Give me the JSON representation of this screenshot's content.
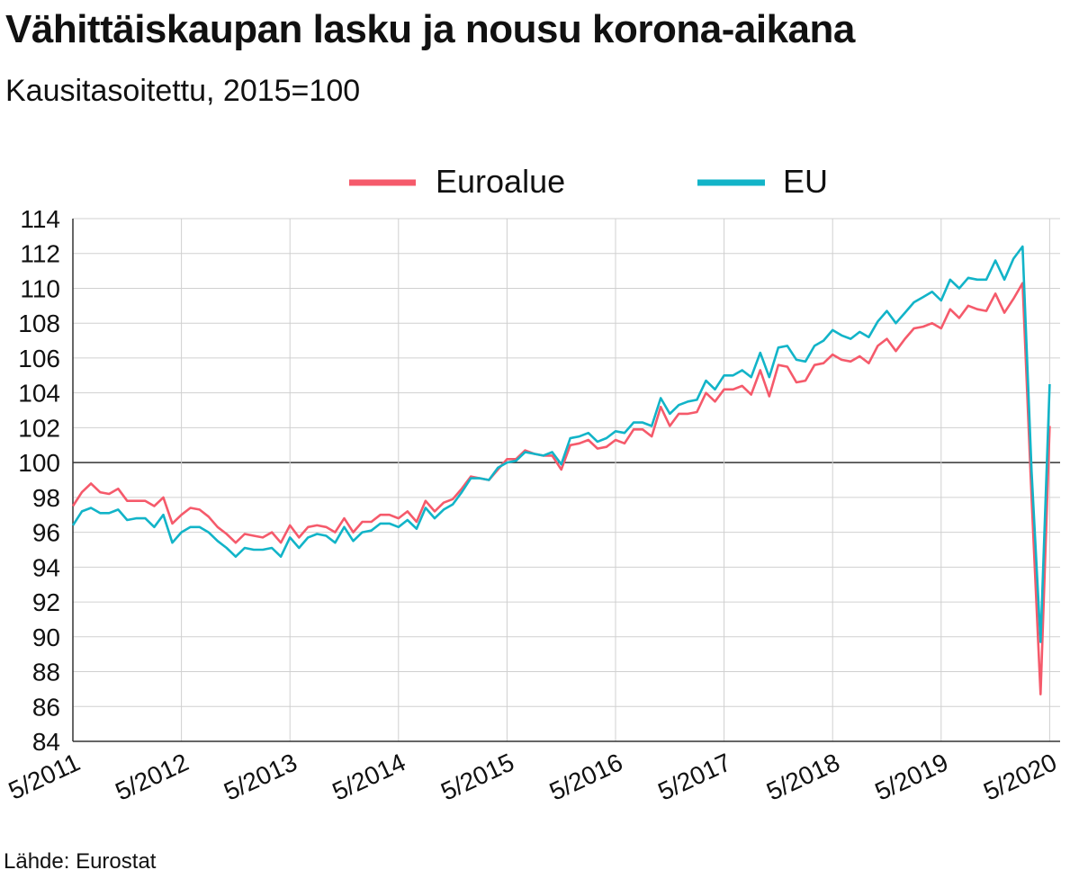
{
  "header": {
    "title": "Vähittäiskaupan lasku ja nousu korona-aikana",
    "subtitle": "Kausitasoitettu, 2015=100"
  },
  "footer": {
    "source": "Lähde: Eurostat"
  },
  "colors": {
    "euroalue": "#f55a6b",
    "eu": "#12b4c8",
    "grid": "#d0d0d0",
    "baseline": "#333333"
  },
  "chart_data": {
    "type": "line",
    "x_tick_labels": [
      "5/2011",
      "5/2012",
      "5/2013",
      "5/2014",
      "5/2015",
      "5/2016",
      "5/2017",
      "5/2018",
      "5/2019",
      "5/2020"
    ],
    "y_ticks": [
      84,
      86,
      88,
      90,
      92,
      94,
      96,
      98,
      100,
      102,
      104,
      106,
      108,
      110,
      112,
      114
    ],
    "ylim": [
      84,
      114
    ],
    "x_start": "5/2011",
    "reference_line": 100,
    "grid": true,
    "legend_position": "top-center",
    "series": [
      {
        "name": "Euroalue",
        "color": "#f55a6b",
        "values": [
          97.5,
          98.3,
          98.8,
          98.3,
          98.2,
          98.5,
          97.8,
          97.8,
          97.8,
          97.5,
          98.0,
          96.5,
          97.0,
          97.4,
          97.3,
          96.9,
          96.3,
          95.9,
          95.4,
          95.9,
          95.8,
          95.7,
          96.0,
          95.4,
          96.4,
          95.7,
          96.3,
          96.4,
          96.3,
          96.0,
          96.8,
          96.0,
          96.6,
          96.6,
          97.0,
          97.0,
          96.8,
          97.2,
          96.6,
          97.8,
          97.2,
          97.7,
          97.9,
          98.5,
          99.2,
          99.1,
          99.0,
          99.6,
          100.2,
          100.2,
          100.7,
          100.5,
          100.4,
          100.4,
          99.6,
          101.0,
          101.1,
          101.3,
          100.8,
          100.9,
          101.3,
          101.1,
          101.9,
          101.9,
          101.5,
          103.2,
          102.1,
          102.8,
          102.8,
          102.9,
          104.0,
          103.5,
          104.2,
          104.2,
          104.4,
          103.9,
          105.3,
          103.8,
          105.6,
          105.5,
          104.6,
          104.7,
          105.6,
          105.7,
          106.2,
          105.9,
          105.8,
          106.1,
          105.7,
          106.7,
          107.1,
          106.4,
          107.1,
          107.7,
          107.8,
          108.0,
          107.7,
          108.8,
          108.3,
          109.0,
          108.8,
          108.7,
          109.7,
          108.6,
          109.4,
          110.3,
          98.0,
          86.7,
          102.1
        ],
        "last_label": "5/2020"
      },
      {
        "name": "EU",
        "color": "#12b4c8",
        "values": [
          96.4,
          97.2,
          97.4,
          97.1,
          97.1,
          97.3,
          96.7,
          96.8,
          96.8,
          96.3,
          97.0,
          95.4,
          96.0,
          96.3,
          96.3,
          96.0,
          95.5,
          95.1,
          94.6,
          95.1,
          95.0,
          95.0,
          95.1,
          94.6,
          95.7,
          95.1,
          95.7,
          95.9,
          95.8,
          95.4,
          96.3,
          95.5,
          96.0,
          96.1,
          96.5,
          96.5,
          96.3,
          96.7,
          96.2,
          97.4,
          96.8,
          97.3,
          97.6,
          98.3,
          99.1,
          99.1,
          99.0,
          99.7,
          100.0,
          100.1,
          100.6,
          100.5,
          100.4,
          100.6,
          99.9,
          101.4,
          101.5,
          101.7,
          101.2,
          101.4,
          101.8,
          101.7,
          102.3,
          102.3,
          102.1,
          103.7,
          102.8,
          103.3,
          103.5,
          103.6,
          104.7,
          104.2,
          105.0,
          105.0,
          105.3,
          104.9,
          106.3,
          104.9,
          106.6,
          106.7,
          105.9,
          105.8,
          106.7,
          107.0,
          107.6,
          107.3,
          107.1,
          107.5,
          107.2,
          108.1,
          108.7,
          108.0,
          108.6,
          109.2,
          109.5,
          109.8,
          109.3,
          110.5,
          110.0,
          110.6,
          110.5,
          110.5,
          111.6,
          110.5,
          111.7,
          112.4,
          99.5,
          89.7,
          104.5
        ],
        "last_label": "5/2020"
      }
    ]
  }
}
